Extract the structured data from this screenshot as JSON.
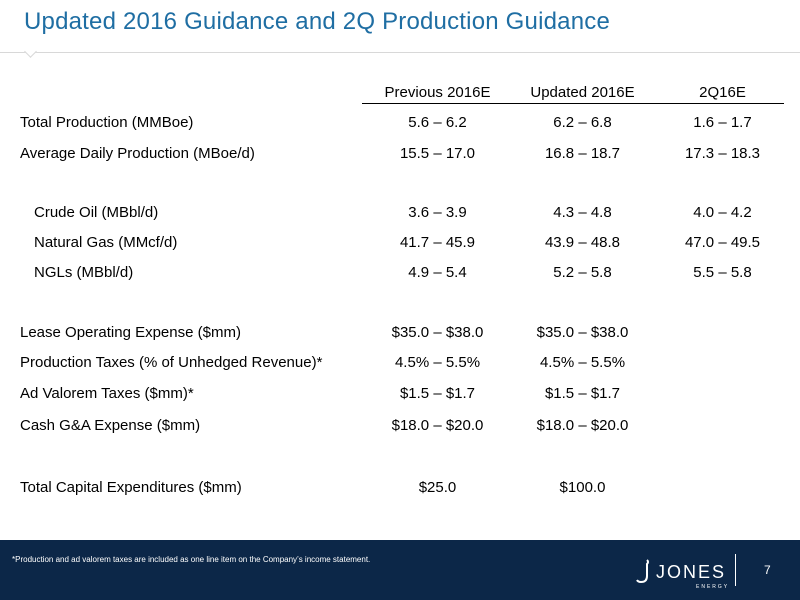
{
  "title": "Updated 2016 Guidance and 2Q Production Guidance",
  "table": {
    "headers": [
      "Previous 2016E",
      "Updated 2016E",
      "2Q16E"
    ],
    "rows": [
      {
        "label": "Total Production (MMBoe)",
        "values": [
          "5.6 – 6.2",
          "6.2 – 6.8",
          "1.6 – 1.7"
        ]
      },
      {
        "label": "Average Daily Production (MBoe/d)",
        "values": [
          "15.5 – 17.0",
          "16.8 – 18.7",
          "17.3 – 18.3"
        ]
      },
      {
        "label": "Crude Oil (MBbl/d)",
        "values": [
          "3.6 – 3.9",
          "4.3 – 4.8",
          "4.0 – 4.2"
        ]
      },
      {
        "label": "Natural Gas (MMcf/d)",
        "values": [
          "41.7 – 45.9",
          "43.9 – 48.8",
          "47.0 – 49.5"
        ]
      },
      {
        "label": "NGLs (MBbl/d)",
        "values": [
          "4.9 – 5.4",
          "5.2 – 5.8",
          "5.5 – 5.8"
        ]
      },
      {
        "label": "Lease Operating Expense ($mm)",
        "values": [
          "$35.0 – $38.0",
          "$35.0 – $38.0",
          ""
        ]
      },
      {
        "label": "Production Taxes (% of Unhedged Revenue)*",
        "values": [
          "4.5% – 5.5%",
          "4.5% – 5.5%",
          ""
        ]
      },
      {
        "label": "Ad Valorem Taxes ($mm)*",
        "values": [
          "$1.5 – $1.7",
          "$1.5 – $1.7",
          ""
        ]
      },
      {
        "label": "Cash G&A Expense ($mm)",
        "values": [
          "$18.0 – $20.0",
          "$18.0 – $20.0",
          ""
        ]
      },
      {
        "label": "Total Capital Expenditures ($mm)",
        "values": [
          "$25.0",
          "$100.0",
          ""
        ]
      }
    ]
  },
  "footer": {
    "footnote": "*Production and ad valorem taxes are included as one line item on the Company’s income statement.",
    "logo_text": "JONES",
    "logo_sub": "ENERGY",
    "page_number": "7"
  },
  "colors": {
    "title": "#1f6ea3",
    "footer_bg": "#0c2748"
  }
}
